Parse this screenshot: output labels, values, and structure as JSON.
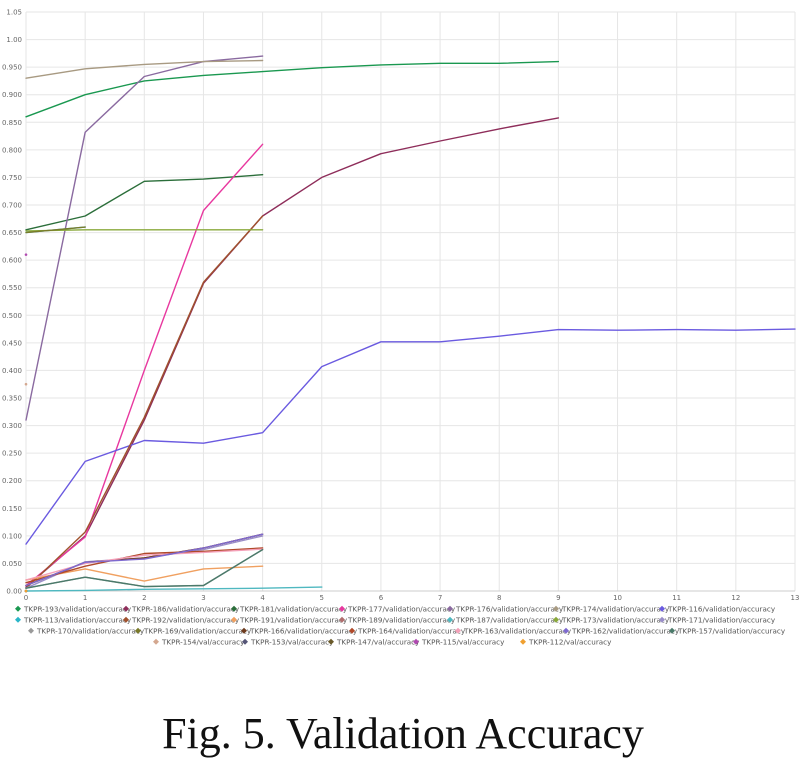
{
  "caption": "Fig. 5.   Validation Accuracy",
  "chart_data": {
    "type": "line",
    "x_ticks": [
      "0",
      "1",
      "2",
      "3",
      "4",
      "5",
      "6",
      "7",
      "8",
      "9",
      "10",
      "11",
      "12",
      "13"
    ],
    "y_ticks": [
      "0.00",
      "0.050",
      "0.100",
      "0.150",
      "0.200",
      "0.250",
      "0.300",
      "0.350",
      "0.400",
      "0.450",
      "0.500",
      "0.550",
      "0.600",
      "0.650",
      "0.700",
      "0.750",
      "0.800",
      "0.850",
      "0.900",
      "0.950",
      "1.00",
      "1.05"
    ],
    "xlim": [
      0,
      13
    ],
    "ylim": [
      0,
      1.05
    ],
    "grid": true,
    "legend_position": "bottom",
    "series": [
      {
        "name": "TKPR-193/validation/accuracy",
        "color": "#1a9850",
        "x": [
          0,
          1,
          2,
          3,
          4,
          5,
          6,
          7,
          8,
          9
        ],
        "y": [
          0.86,
          0.9,
          0.925,
          0.935,
          0.942,
          0.949,
          0.954,
          0.957,
          0.957,
          0.96
        ]
      },
      {
        "name": "TKPR-186/validation/accuracy",
        "color": "#8e2d5a",
        "x": [
          0,
          1,
          2,
          3,
          4,
          5,
          6,
          7,
          8,
          9
        ],
        "y": [
          0.007,
          0.1,
          0.31,
          0.558,
          0.68,
          0.75,
          0.793,
          0.816,
          0.838,
          0.858
        ]
      },
      {
        "name": "TKPR-181/validation/accuracy",
        "color": "#2b6e3a",
        "x": [
          0,
          1,
          2,
          3,
          4
        ],
        "y": [
          0.655,
          0.68,
          0.743,
          0.747,
          0.755
        ]
      },
      {
        "name": "TKPR-177/validation/accuracy",
        "color": "#e8389f",
        "x": [
          0,
          1,
          2,
          3,
          4
        ],
        "y": [
          0.01,
          0.098,
          0.4,
          0.69,
          0.81
        ]
      },
      {
        "name": "TKPR-176/validation/accuracy",
        "color": "#8a6aa0",
        "x": [
          0,
          1,
          2,
          3,
          4
        ],
        "y": [
          0.31,
          0.832,
          0.933,
          0.96,
          0.97
        ]
      },
      {
        "name": "TKPR-174/validation/accuracy",
        "color": "#a89a82",
        "x": [
          0,
          1,
          2,
          3,
          4
        ],
        "y": [
          0.93,
          0.947,
          0.955,
          0.96,
          0.962
        ]
      },
      {
        "name": "TKPR-116/validation/accuracy",
        "color": "#6a5ae0",
        "x": [
          0,
          1,
          2,
          3,
          4,
          5,
          6,
          7,
          8,
          9,
          10,
          11,
          12,
          13
        ],
        "y": [
          0.085,
          0.235,
          0.273,
          0.268,
          0.287,
          0.407,
          0.452,
          0.452,
          0.462,
          0.474,
          0.473,
          0.474,
          0.473,
          0.475
        ]
      },
      {
        "name": "TKPR-113/validation/accuracy",
        "color": "#2ab6c8",
        "x": [
          0,
          1
        ],
        "y": [
          0.65,
          0.66
        ]
      },
      {
        "name": "TKPR-192/validation/accuracy",
        "color": "#a0522d",
        "x": [
          0,
          1,
          2,
          3,
          4
        ],
        "y": [
          0.005,
          0.107,
          0.315,
          0.56,
          0.68
        ]
      },
      {
        "name": "TKPR-191/validation/accuracy",
        "color": "#f0a060",
        "x": [
          0,
          1,
          2,
          3,
          4
        ],
        "y": [
          0.02,
          0.04,
          0.018,
          0.04,
          0.045
        ]
      },
      {
        "name": "TKPR-189/validation/accuracy",
        "color": "#b06e6e",
        "x": [
          0,
          1,
          2,
          3,
          4
        ],
        "y": [
          0.01,
          0.052,
          0.06,
          0.078,
          0.103
        ]
      },
      {
        "name": "TKPR-187/validation/accuracy",
        "color": "#4fb8c0",
        "x": [
          0,
          1,
          2,
          3,
          4,
          5
        ],
        "y": [
          0.0,
          0.001,
          0.003,
          0.004,
          0.005,
          0.007
        ]
      },
      {
        "name": "TKPR-173/validation/accuracy",
        "color": "#8aa93c",
        "x": [
          0,
          1,
          2,
          3,
          4
        ],
        "y": [
          0.653,
          0.655,
          0.655,
          0.655,
          0.655
        ]
      },
      {
        "name": "TKPR-171/validation/accuracy",
        "color": "#9a8ec8",
        "x": [
          0,
          1,
          2,
          3,
          4
        ],
        "y": [
          0.005,
          0.053,
          0.06,
          0.075,
          0.1
        ]
      },
      {
        "name": "TKPR-170/validation/accuracy",
        "color": "#9a9a9a",
        "x": [
          0,
          1,
          2,
          3,
          4
        ],
        "y": [
          0.005,
          0.025,
          0.008,
          0.01,
          0.075
        ]
      },
      {
        "name": "TKPR-169/validation/accuracy",
        "color": "#7a7a2a",
        "x": [
          0,
          1
        ],
        "y": [
          0.65,
          0.66
        ]
      },
      {
        "name": "TKPR-166/validation/accuracy",
        "color": "#6e3b1e",
        "x": [
          0,
          1,
          2,
          3,
          4
        ],
        "y": [
          0.01,
          0.052,
          0.06,
          0.078,
          0.103
        ]
      },
      {
        "name": "TKPR-164/validation/accuracy",
        "color": "#b0492a",
        "x": [
          0,
          1,
          2,
          3,
          4
        ],
        "y": [
          0.015,
          0.045,
          0.068,
          0.072,
          0.078
        ]
      },
      {
        "name": "TKPR-163/validation/accuracy",
        "color": "#f4a0b8",
        "x": [
          0,
          1,
          2,
          3,
          4
        ],
        "y": [
          0.02,
          0.05,
          0.065,
          0.07,
          0.076
        ]
      },
      {
        "name": "TKPR-162/validation/accuracy",
        "color": "#7e6ad0",
        "x": [
          0,
          1,
          2,
          3,
          4
        ],
        "y": [
          0.01,
          0.052,
          0.058,
          0.078,
          0.103
        ]
      },
      {
        "name": "TKPR-157/validation/accuracy",
        "color": "#4a7a6a",
        "x": [
          0,
          1,
          2,
          3,
          4
        ],
        "y": [
          0.005,
          0.025,
          0.008,
          0.01,
          0.075
        ]
      },
      {
        "name": "TKPR-154/val/accuracy",
        "color": "#d4a890",
        "x": [
          0
        ],
        "y": [
          0.375
        ]
      },
      {
        "name": "TKPR-153/val/accuracy",
        "color": "#555577",
        "x": [
          0
        ],
        "y": [
          0.0
        ]
      },
      {
        "name": "TKPR-147/val/accuracy",
        "color": "#6a5a2a",
        "x": [
          0
        ],
        "y": [
          0.0
        ]
      },
      {
        "name": "TKPR-115/val/accuracy",
        "color": "#b04ab0",
        "x": [
          0
        ],
        "y": [
          0.61
        ]
      },
      {
        "name": "TKPR-112/val/accuracy",
        "color": "#f0a030",
        "x": [
          0
        ],
        "y": [
          0.0
        ]
      }
    ]
  }
}
